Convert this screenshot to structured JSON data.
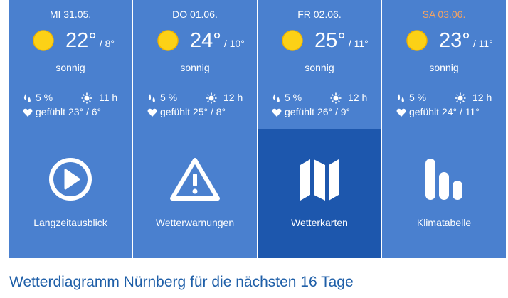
{
  "days": [
    {
      "date": "MI 31.05.",
      "date_color": "#ffffff",
      "tmax": "22°",
      "tmin": "/ 8°",
      "condition": "sonnig",
      "rain": "5 %",
      "sunshine": "11 h",
      "feels": "gefühlt 23° / 6°",
      "icon": "sun-icon"
    },
    {
      "date": "DO 01.06.",
      "date_color": "#ffffff",
      "tmax": "24°",
      "tmin": "/ 10°",
      "condition": "sonnig",
      "rain": "5 %",
      "sunshine": "12 h",
      "feels": "gefühlt 25° / 8°",
      "icon": "sun-icon"
    },
    {
      "date": "FR 02.06.",
      "date_color": "#ffffff",
      "tmax": "25°",
      "tmin": "/ 11°",
      "condition": "sonnig",
      "rain": "5 %",
      "sunshine": "12 h",
      "feels": "gefühlt 26° / 9°",
      "icon": "sun-icon"
    },
    {
      "date": "SA 03.06.",
      "date_color": "#f4a362",
      "tmax": "23°",
      "tmin": "/ 11°",
      "condition": "sonnig",
      "rain": "5 %",
      "sunshine": "12 h",
      "feels": "gefühlt 24° / 11°",
      "icon": "sun-icon"
    }
  ],
  "tiles": [
    {
      "label": "Langzeitausblick",
      "icon": "play-circle-icon",
      "active": false
    },
    {
      "label": "Wetterwarnungen",
      "icon": "warning-triangle-icon",
      "active": false
    },
    {
      "label": "Wetterkarten",
      "icon": "map-icon",
      "active": true
    },
    {
      "label": "Klimatabelle",
      "icon": "bar-chart-icon",
      "active": false
    }
  ],
  "heading": "Wetterdiagramm Nürnberg für die nächsten 16 Tage",
  "colors": {
    "tile_blue": "#4a80cf",
    "tile_active": "#1d57ad",
    "weekend": "#f4a362",
    "heading": "#1f5fa8",
    "sun": "#fcd116"
  }
}
